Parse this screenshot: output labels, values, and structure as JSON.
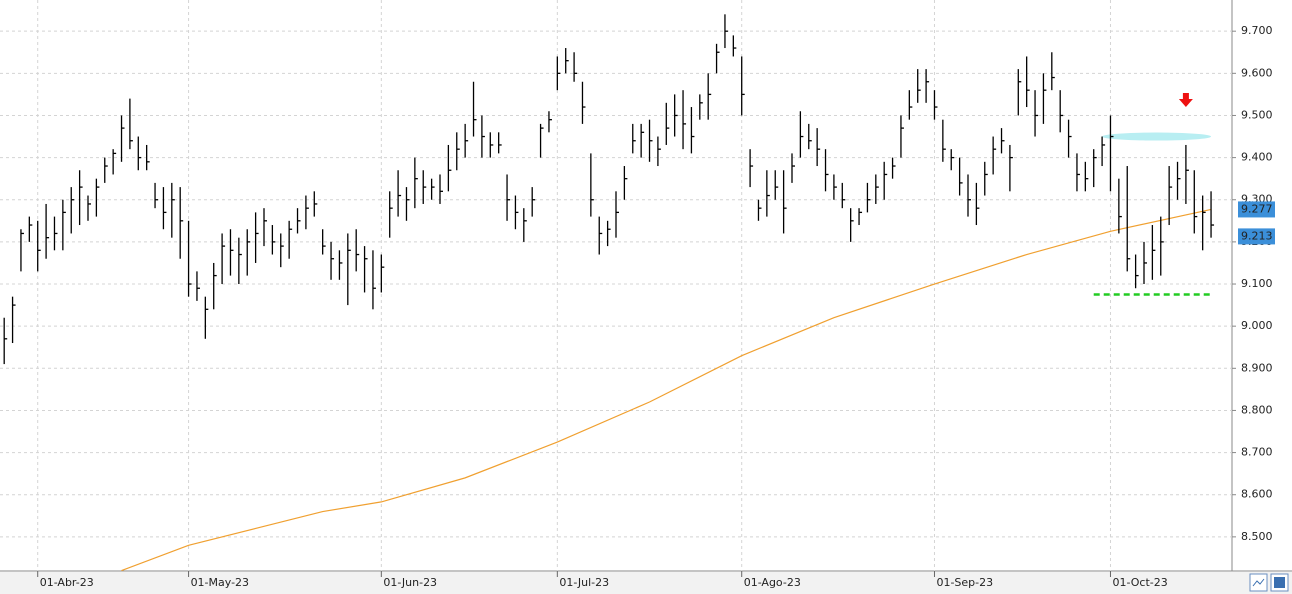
{
  "chart_data": {
    "type": "ohlc",
    "xlim": [
      -0.5,
      146.5
    ],
    "xticks": [
      {
        "value": 4,
        "label": "01-Abr-23"
      },
      {
        "value": 22,
        "label": "01-May-23"
      },
      {
        "value": 45,
        "label": "01-Jun-23"
      },
      {
        "value": 66,
        "label": "01-Jul-23"
      },
      {
        "value": 88,
        "label": "01-Ago-23"
      },
      {
        "value": 111,
        "label": "01-Sep-23"
      },
      {
        "value": 132,
        "label": "01-Oct-23"
      }
    ],
    "ylim": [
      8.419,
      9.774
    ],
    "yticks": [
      {
        "value": 8.5,
        "label": "8.500"
      },
      {
        "value": 8.6,
        "label": "8.600"
      },
      {
        "value": 8.7,
        "label": "8.700"
      },
      {
        "value": 8.8,
        "label": "8.800"
      },
      {
        "value": 8.9,
        "label": "8.900"
      },
      {
        "value": 9.0,
        "label": "9.000"
      },
      {
        "value": 9.1,
        "label": "9.100"
      },
      {
        "value": 9.2,
        "label": "9.200"
      },
      {
        "value": 9.3,
        "label": "9.300"
      },
      {
        "value": 9.4,
        "label": "9.400"
      },
      {
        "value": 9.5,
        "label": "9.500"
      },
      {
        "value": 9.6,
        "label": "9.600"
      },
      {
        "value": 9.7,
        "label": "9.700"
      }
    ],
    "grid": true,
    "color": "#000000",
    "high": [
      9.02,
      9.07,
      9.23,
      9.26,
      9.25,
      9.29,
      9.26,
      9.3,
      9.33,
      9.37,
      9.31,
      9.35,
      9.4,
      9.42,
      9.5,
      9.54,
      9.45,
      9.43,
      9.34,
      9.33,
      9.34,
      9.33,
      9.25,
      9.13,
      9.07,
      9.15,
      9.22,
      9.23,
      9.21,
      9.23,
      9.27,
      9.28,
      9.24,
      9.22,
      9.25,
      9.28,
      9.31,
      9.32,
      9.23,
      9.2,
      9.18,
      9.22,
      9.23,
      9.19,
      9.18,
      9.17,
      9.32,
      9.37,
      9.33,
      9.4,
      9.37,
      9.35,
      9.36,
      9.43,
      9.46,
      9.48,
      9.58,
      9.5,
      9.46,
      9.46,
      9.36,
      9.31,
      9.28,
      9.33,
      9.48,
      9.51,
      9.64,
      9.66,
      9.65,
      9.58,
      9.41,
      9.26,
      9.25,
      9.32,
      9.38,
      9.48,
      9.48,
      9.49,
      9.45,
      9.53,
      9.55,
      9.56,
      9.52,
      9.55,
      9.6,
      9.67,
      9.74,
      9.69,
      9.64,
      9.42,
      9.3,
      9.37,
      9.37,
      9.37,
      9.41,
      9.51,
      9.48,
      9.47,
      9.42,
      9.36,
      9.34,
      9.28,
      9.28,
      9.34,
      9.36,
      9.39,
      9.4,
      9.5,
      9.56,
      9.61,
      9.61,
      9.56,
      9.49,
      9.42,
      9.4,
      9.36,
      9.34,
      9.39,
      9.45,
      9.47,
      9.43,
      9.61,
      9.64,
      9.56,
      9.6,
      9.65,
      9.56,
      9.49,
      9.41,
      9.39,
      9.42,
      9.45,
      9.5,
      9.35,
      9.38,
      9.17,
      9.2,
      9.24,
      9.26,
      9.38,
      9.39,
      9.43,
      9.37,
      9.31,
      9.32
    ],
    "low": [
      8.91,
      8.96,
      9.13,
      9.2,
      9.13,
      9.16,
      9.18,
      9.18,
      9.22,
      9.24,
      9.25,
      9.26,
      9.34,
      9.36,
      9.39,
      9.42,
      9.37,
      9.37,
      9.28,
      9.23,
      9.21,
      9.16,
      9.07,
      9.06,
      8.97,
      9.04,
      9.1,
      9.12,
      9.1,
      9.12,
      9.15,
      9.19,
      9.17,
      9.14,
      9.16,
      9.22,
      9.23,
      9.26,
      9.17,
      9.11,
      9.11,
      9.05,
      9.13,
      9.08,
      9.04,
      9.08,
      9.21,
      9.26,
      9.25,
      9.28,
      9.29,
      9.3,
      9.29,
      9.32,
      9.37,
      9.4,
      9.45,
      9.4,
      9.4,
      9.41,
      9.25,
      9.23,
      9.2,
      9.26,
      9.4,
      9.46,
      9.56,
      9.6,
      9.58,
      9.48,
      9.26,
      9.17,
      9.19,
      9.21,
      9.3,
      9.41,
      9.4,
      9.39,
      9.38,
      9.43,
      9.45,
      9.42,
      9.41,
      9.49,
      9.49,
      9.6,
      9.66,
      9.64,
      9.5,
      9.33,
      9.25,
      9.26,
      9.3,
      9.22,
      9.34,
      9.4,
      9.42,
      9.38,
      9.32,
      9.3,
      9.28,
      9.2,
      9.24,
      9.27,
      9.29,
      9.3,
      9.35,
      9.4,
      9.49,
      9.53,
      9.53,
      9.49,
      9.39,
      9.37,
      9.31,
      9.26,
      9.24,
      9.31,
      9.36,
      9.41,
      9.32,
      9.5,
      9.52,
      9.45,
      9.48,
      9.56,
      9.46,
      9.4,
      9.32,
      9.32,
      9.33,
      9.38,
      9.32,
      9.22,
      9.13,
      9.09,
      9.1,
      9.11,
      9.12,
      9.24,
      9.3,
      9.29,
      9.22,
      9.18,
      9.21
    ],
    "close": [
      8.97,
      9.05,
      9.22,
      9.24,
      9.18,
      9.21,
      9.22,
      9.27,
      9.3,
      9.33,
      9.29,
      9.33,
      9.38,
      9.41,
      9.47,
      9.44,
      9.4,
      9.39,
      9.3,
      9.27,
      9.3,
      9.25,
      9.1,
      9.09,
      9.04,
      9.12,
      9.19,
      9.18,
      9.17,
      9.2,
      9.22,
      9.25,
      9.2,
      9.19,
      9.23,
      9.25,
      9.28,
      9.29,
      9.19,
      9.16,
      9.15,
      9.18,
      9.17,
      9.16,
      9.09,
      9.14,
      9.28,
      9.31,
      9.3,
      9.35,
      9.33,
      9.33,
      9.32,
      9.37,
      9.42,
      9.44,
      9.49,
      9.45,
      9.43,
      9.43,
      9.3,
      9.27,
      9.25,
      9.3,
      9.47,
      9.49,
      9.6,
      9.63,
      9.6,
      9.52,
      9.3,
      9.22,
      9.23,
      9.27,
      9.35,
      9.44,
      9.46,
      9.44,
      9.42,
      9.47,
      9.5,
      9.48,
      9.45,
      9.53,
      9.55,
      9.65,
      9.7,
      9.66,
      9.55,
      9.38,
      9.28,
      9.31,
      9.33,
      9.28,
      9.38,
      9.45,
      9.44,
      9.42,
      9.36,
      9.33,
      9.3,
      9.25,
      9.27,
      9.3,
      9.33,
      9.36,
      9.38,
      9.47,
      9.52,
      9.56,
      9.58,
      9.52,
      9.42,
      9.4,
      9.34,
      9.3,
      9.28,
      9.36,
      9.42,
      9.44,
      9.4,
      9.58,
      9.56,
      9.5,
      9.56,
      9.59,
      9.5,
      9.45,
      9.36,
      9.35,
      9.4,
      9.43,
      9.45,
      9.26,
      9.16,
      9.12,
      9.15,
      9.18,
      9.2,
      9.33,
      9.35,
      9.37,
      9.26,
      9.27,
      9.24
    ],
    "moving_average": {
      "color": "#f0a030",
      "x": [
        14,
        22,
        30,
        38,
        45,
        55,
        66,
        77,
        88,
        99,
        111,
        122,
        132,
        144
      ],
      "values": [
        8.42,
        8.48,
        8.52,
        8.56,
        8.583,
        8.64,
        8.725,
        8.82,
        8.93,
        9.02,
        9.1,
        9.17,
        9.225,
        9.277
      ]
    },
    "price_labels": [
      9.277,
      9.213
    ],
    "support": {
      "value": 9.075,
      "x": [
        130,
        144
      ],
      "color": "#22cc22"
    },
    "resistance": {
      "value": 9.45,
      "x": [
        131,
        144
      ],
      "color": "#b8eef2"
    },
    "signal": {
      "x": 141,
      "value": 9.52,
      "color": "#ee1111"
    }
  }
}
